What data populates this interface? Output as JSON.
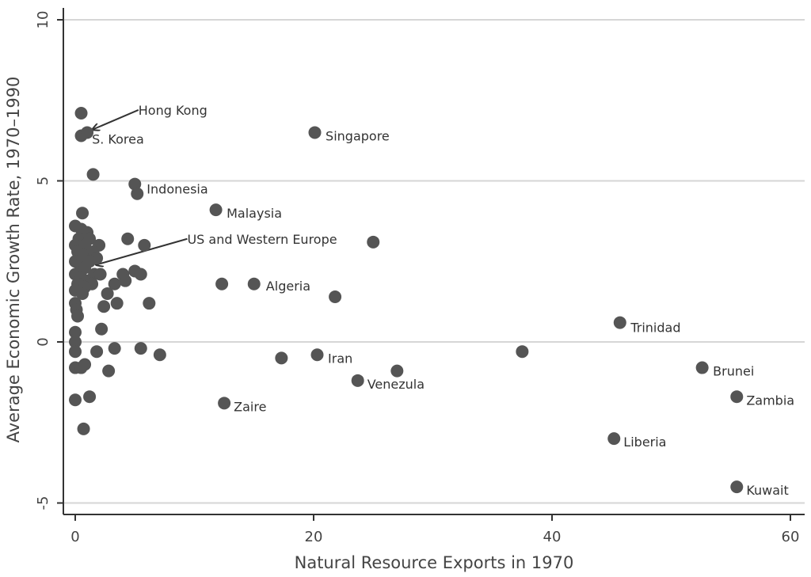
{
  "chart_data": {
    "type": "scatter",
    "xlabel": "Natural Resource Exports in 1970",
    "ylabel": "Average Economic Growth Rate, 1970–1990",
    "xlim": [
      -1,
      61
    ],
    "ylim": [
      -5.4,
      10.2
    ],
    "xticks": [
      "0",
      "20",
      "40",
      "60"
    ],
    "yticks": [
      "-5",
      "0",
      "5",
      "10"
    ],
    "grid": "horizontal",
    "point_color": "#555555",
    "points": [
      {
        "x": 0.5,
        "y": 7.1
      },
      {
        "x": 0.5,
        "y": 6.4
      },
      {
        "x": 1.0,
        "y": 6.5
      },
      {
        "x": 1.5,
        "y": 5.2
      },
      {
        "x": 0.6,
        "y": 4.0
      },
      {
        "x": 0.0,
        "y": 3.6
      },
      {
        "x": 0.5,
        "y": 3.5
      },
      {
        "x": 1.0,
        "y": 3.4
      },
      {
        "x": 0.3,
        "y": 3.2
      },
      {
        "x": 1.2,
        "y": 3.2
      },
      {
        "x": 0.0,
        "y": 3.0
      },
      {
        "x": 0.8,
        "y": 3.0
      },
      {
        "x": 2.0,
        "y": 3.0
      },
      {
        "x": 0.2,
        "y": 2.8
      },
      {
        "x": 1.5,
        "y": 2.8
      },
      {
        "x": 0.6,
        "y": 2.7
      },
      {
        "x": 1.8,
        "y": 2.6
      },
      {
        "x": 0.0,
        "y": 2.5
      },
      {
        "x": 1.2,
        "y": 2.5
      },
      {
        "x": 0.4,
        "y": 2.4
      },
      {
        "x": 0.8,
        "y": 2.3
      },
      {
        "x": 0.0,
        "y": 2.1
      },
      {
        "x": 1.6,
        "y": 2.1
      },
      {
        "x": 2.1,
        "y": 2.1
      },
      {
        "x": 0.5,
        "y": 2.0
      },
      {
        "x": 1.0,
        "y": 1.9
      },
      {
        "x": 0.2,
        "y": 1.8
      },
      {
        "x": 1.4,
        "y": 1.8
      },
      {
        "x": 0.8,
        "y": 1.7
      },
      {
        "x": 0.0,
        "y": 1.6
      },
      {
        "x": 0.6,
        "y": 1.5
      },
      {
        "x": 0.0,
        "y": 1.2
      },
      {
        "x": 0.1,
        "y": 1.0
      },
      {
        "x": 0.2,
        "y": 0.8
      },
      {
        "x": 0.0,
        "y": 0.3
      },
      {
        "x": 0.0,
        "y": 0.0
      },
      {
        "x": 0.0,
        "y": -0.3
      },
      {
        "x": 0.0,
        "y": -0.8
      },
      {
        "x": 0.5,
        "y": -0.8
      },
      {
        "x": 0.8,
        "y": -0.7
      },
      {
        "x": 0.0,
        "y": -1.8
      },
      {
        "x": 1.2,
        "y": -1.7
      },
      {
        "x": 0.7,
        "y": -2.7
      },
      {
        "x": 5.0,
        "y": 4.9
      },
      {
        "x": 5.2,
        "y": 4.6
      },
      {
        "x": 11.8,
        "y": 4.1
      },
      {
        "x": 4.4,
        "y": 3.2
      },
      {
        "x": 5.8,
        "y": 3.0
      },
      {
        "x": 25.0,
        "y": 3.1
      },
      {
        "x": 20.1,
        "y": 6.5
      },
      {
        "x": 5.0,
        "y": 2.2
      },
      {
        "x": 5.5,
        "y": 2.1
      },
      {
        "x": 4.0,
        "y": 2.1
      },
      {
        "x": 4.2,
        "y": 1.9
      },
      {
        "x": 3.3,
        "y": 1.8
      },
      {
        "x": 12.3,
        "y": 1.8
      },
      {
        "x": 15.0,
        "y": 1.8
      },
      {
        "x": 21.8,
        "y": 1.4
      },
      {
        "x": 2.7,
        "y": 1.5
      },
      {
        "x": 2.4,
        "y": 1.1
      },
      {
        "x": 3.5,
        "y": 1.2
      },
      {
        "x": 6.2,
        "y": 1.2
      },
      {
        "x": 2.2,
        "y": 0.4
      },
      {
        "x": 1.8,
        "y": -0.3
      },
      {
        "x": 3.3,
        "y": -0.2
      },
      {
        "x": 5.5,
        "y": -0.2
      },
      {
        "x": 7.1,
        "y": -0.4
      },
      {
        "x": 2.8,
        "y": -0.9
      },
      {
        "x": 17.3,
        "y": -0.5
      },
      {
        "x": 20.3,
        "y": -0.4
      },
      {
        "x": 23.7,
        "y": -1.2
      },
      {
        "x": 27.0,
        "y": -0.9
      },
      {
        "x": 37.5,
        "y": -0.3
      },
      {
        "x": 12.5,
        "y": -1.9
      },
      {
        "x": 45.7,
        "y": 0.6
      },
      {
        "x": 52.6,
        "y": -0.8
      },
      {
        "x": 55.5,
        "y": -1.7
      },
      {
        "x": 45.2,
        "y": -3.0
      },
      {
        "x": 55.5,
        "y": -4.5
      }
    ],
    "annotations": [
      {
        "text": "Hong Kong",
        "x": 5.3,
        "y": 7.2
      },
      {
        "text": "S. Korea",
        "x": 1.4,
        "y": 6.3
      },
      {
        "text": "Singapore",
        "x": 21.0,
        "y": 6.4
      },
      {
        "text": "Indonesia",
        "x": 6.0,
        "y": 4.75
      },
      {
        "text": "Malaysia",
        "x": 12.7,
        "y": 4.0
      },
      {
        "text": "US and Western Europe",
        "x": 9.4,
        "y": 3.2
      },
      {
        "text": "Algeria",
        "x": 16.0,
        "y": 1.75
      },
      {
        "text": "Trinidad",
        "x": 46.6,
        "y": 0.45
      },
      {
        "text": "Iran",
        "x": 21.2,
        "y": -0.5
      },
      {
        "text": "Brunei",
        "x": 53.5,
        "y": -0.9
      },
      {
        "text": "Venezula",
        "x": 24.5,
        "y": -1.3
      },
      {
        "text": "Zambia",
        "x": 56.3,
        "y": -1.8
      },
      {
        "text": "Zaire",
        "x": 13.3,
        "y": -2.0
      },
      {
        "text": "Liberia",
        "x": 46.0,
        "y": -3.1
      },
      {
        "text": "Kuwait",
        "x": 56.3,
        "y": -4.6
      }
    ],
    "arrows": [
      {
        "from": [
          5.3,
          7.2
        ],
        "to": [
          1.5,
          6.6
        ]
      },
      {
        "from": [
          9.4,
          3.2
        ],
        "to": [
          1.8,
          2.4
        ]
      }
    ]
  }
}
